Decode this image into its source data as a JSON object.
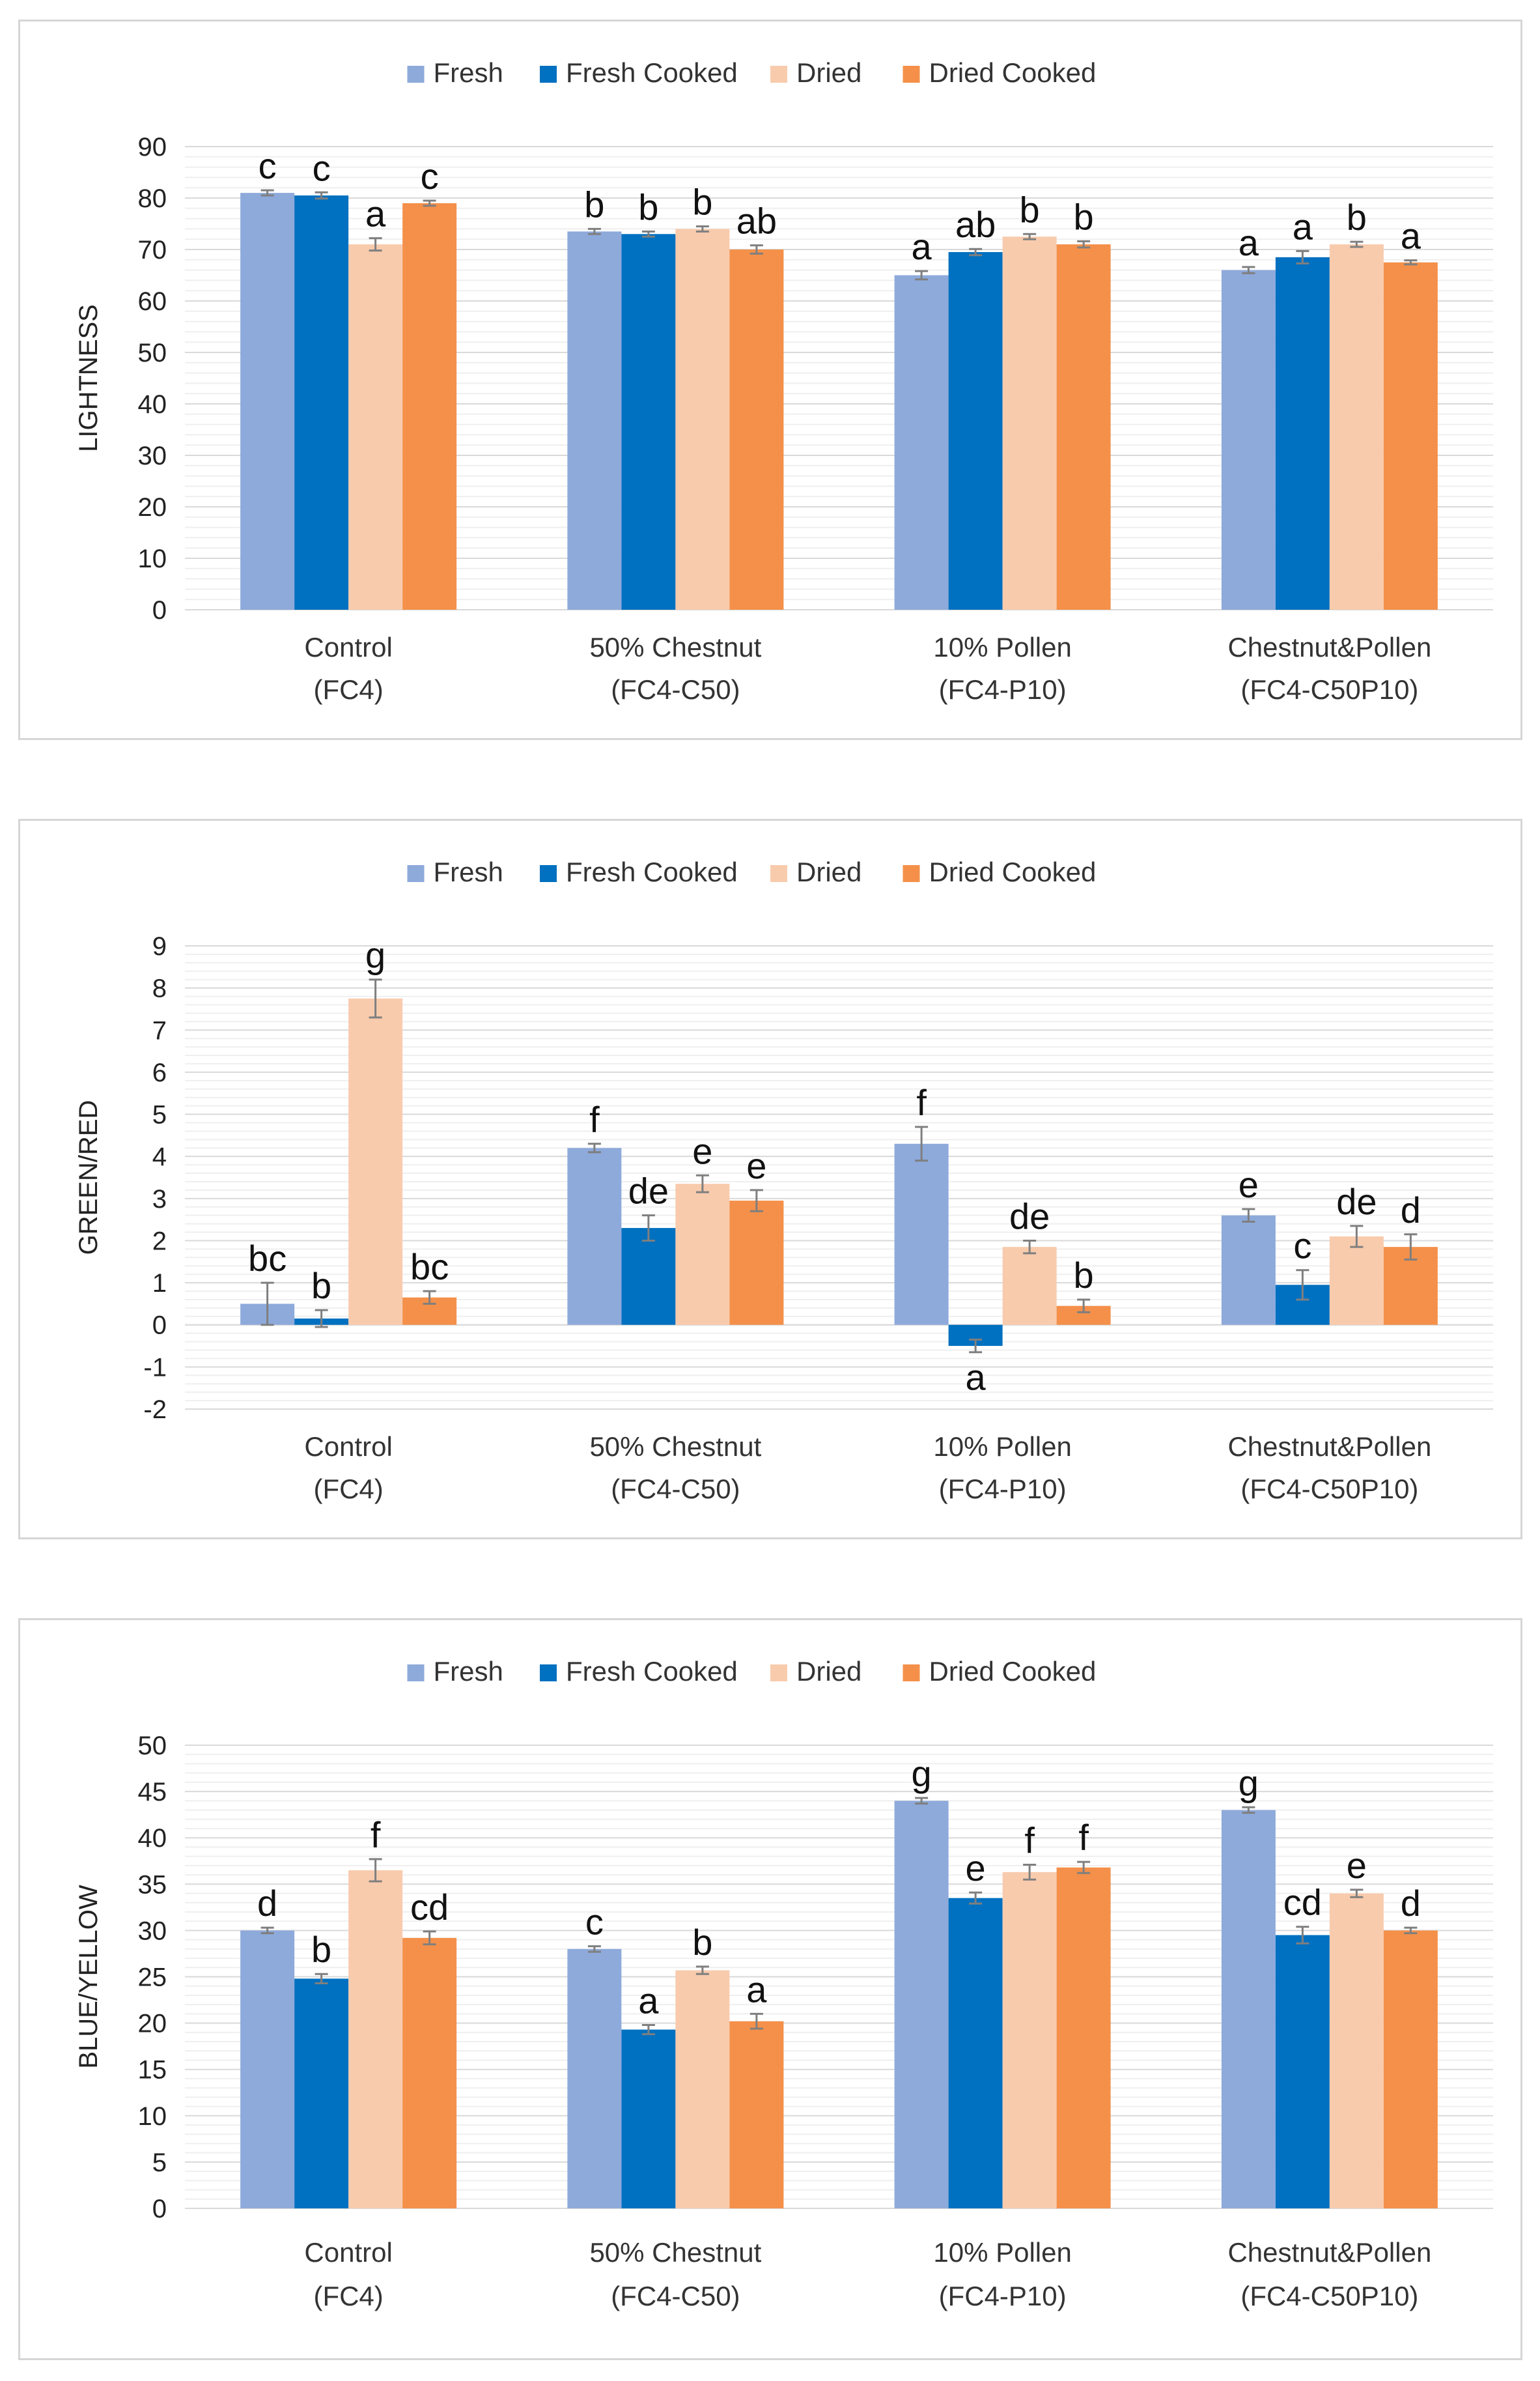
{
  "series_colors": {
    "Fresh": "#8eaadb",
    "Fresh Cooked": "#0070c0",
    "Dried": "#f8cbad",
    "Dried Cooked": "#f4904a"
  },
  "chart_data": [
    {
      "type": "bar",
      "title": "",
      "xlabel": "",
      "ylabel": "LIGHTNESS",
      "ylim": [
        0,
        90
      ],
      "ytick_step": 10,
      "categories": [
        {
          "line1": "Control",
          "line2": "(FC4)"
        },
        {
          "line1": "50% Chestnut",
          "line2": "(FC4-C50)"
        },
        {
          "line1": "10% Pollen",
          "line2": "(FC4-P10)"
        },
        {
          "line1": "Chestnut&Pollen",
          "line2": "(FC4-C50P10)"
        }
      ],
      "series": [
        {
          "name": "Fresh",
          "values": [
            81,
            73.5,
            65,
            66
          ],
          "errors": [
            0.5,
            0.5,
            0.8,
            0.6
          ],
          "letters": [
            "c",
            "b",
            "a",
            "a"
          ]
        },
        {
          "name": "Fresh Cooked",
          "values": [
            80.5,
            73,
            69.5,
            68.5
          ],
          "errors": [
            0.6,
            0.5,
            0.6,
            1.2
          ],
          "letters": [
            "c",
            "b",
            "ab",
            "a"
          ]
        },
        {
          "name": "Dried",
          "values": [
            71,
            74,
            72.5,
            71
          ],
          "errors": [
            1.2,
            0.5,
            0.5,
            0.5
          ],
          "letters": [
            "a",
            "b",
            "b",
            "b"
          ]
        },
        {
          "name": "Dried Cooked",
          "values": [
            79,
            70,
            71,
            67.5
          ],
          "errors": [
            0.5,
            0.8,
            0.6,
            0.4
          ],
          "letters": [
            "c",
            "ab",
            "b",
            "a"
          ]
        }
      ]
    },
    {
      "type": "bar",
      "title": "",
      "xlabel": "",
      "ylabel": "GREEN/RED",
      "ylim": [
        -2,
        9
      ],
      "ytick_step": 1,
      "categories": [
        {
          "line1": "Control",
          "line2": "(FC4)"
        },
        {
          "line1": "50% Chestnut",
          "line2": "(FC4-C50)"
        },
        {
          "line1": "10% Pollen",
          "line2": "(FC4-P10)"
        },
        {
          "line1": "Chestnut&Pollen",
          "line2": "(FC4-C50P10)"
        }
      ],
      "series": [
        {
          "name": "Fresh",
          "values": [
            0.5,
            4.2,
            4.3,
            2.6
          ],
          "errors": [
            0.5,
            0.1,
            0.4,
            0.15
          ],
          "letters": [
            "bc",
            "f",
            "f",
            "e"
          ]
        },
        {
          "name": "Fresh Cooked",
          "values": [
            0.15,
            2.3,
            -0.5,
            0.95
          ],
          "errors": [
            0.2,
            0.3,
            0.15,
            0.35
          ],
          "letters": [
            "b",
            "de",
            "a",
            "c"
          ]
        },
        {
          "name": "Dried",
          "values": [
            7.75,
            3.35,
            1.85,
            2.1
          ],
          "errors": [
            0.45,
            0.2,
            0.15,
            0.25
          ],
          "letters": [
            "g",
            "e",
            "de",
            "de"
          ]
        },
        {
          "name": "Dried Cooked",
          "values": [
            0.65,
            2.95,
            0.45,
            1.85
          ],
          "errors": [
            0.15,
            0.25,
            0.15,
            0.3
          ],
          "letters": [
            "bc",
            "e",
            "b",
            "d"
          ]
        }
      ]
    },
    {
      "type": "bar",
      "title": "",
      "xlabel": "",
      "ylabel": "BLUE/YELLOW",
      "ylim": [
        0,
        50
      ],
      "ytick_step": 5,
      "categories": [
        {
          "line1": "Control",
          "line2": "(FC4)"
        },
        {
          "line1": "50% Chestnut",
          "line2": "(FC4-C50)"
        },
        {
          "line1": "10% Pollen",
          "line2": "(FC4-P10)"
        },
        {
          "line1": "Chestnut&Pollen",
          "line2": "(FC4-C50P10)"
        }
      ],
      "series": [
        {
          "name": "Fresh",
          "values": [
            30,
            28,
            44,
            43
          ],
          "errors": [
            0.3,
            0.3,
            0.3,
            0.3
          ],
          "letters": [
            "d",
            "c",
            "g",
            "g"
          ]
        },
        {
          "name": "Fresh Cooked",
          "values": [
            24.8,
            19.3,
            33.5,
            29.5
          ],
          "errors": [
            0.5,
            0.5,
            0.6,
            0.9
          ],
          "letters": [
            "b",
            "a",
            "e",
            "cd"
          ]
        },
        {
          "name": "Dried",
          "values": [
            36.5,
            25.7,
            36.3,
            34
          ],
          "errors": [
            1.2,
            0.4,
            0.8,
            0.4
          ],
          "letters": [
            "f",
            "b",
            "f",
            "e"
          ]
        },
        {
          "name": "Dried Cooked",
          "values": [
            29.2,
            20.2,
            36.8,
            30
          ],
          "errors": [
            0.7,
            0.8,
            0.6,
            0.3
          ],
          "letters": [
            "cd",
            "a",
            "f",
            "d"
          ]
        }
      ]
    }
  ]
}
